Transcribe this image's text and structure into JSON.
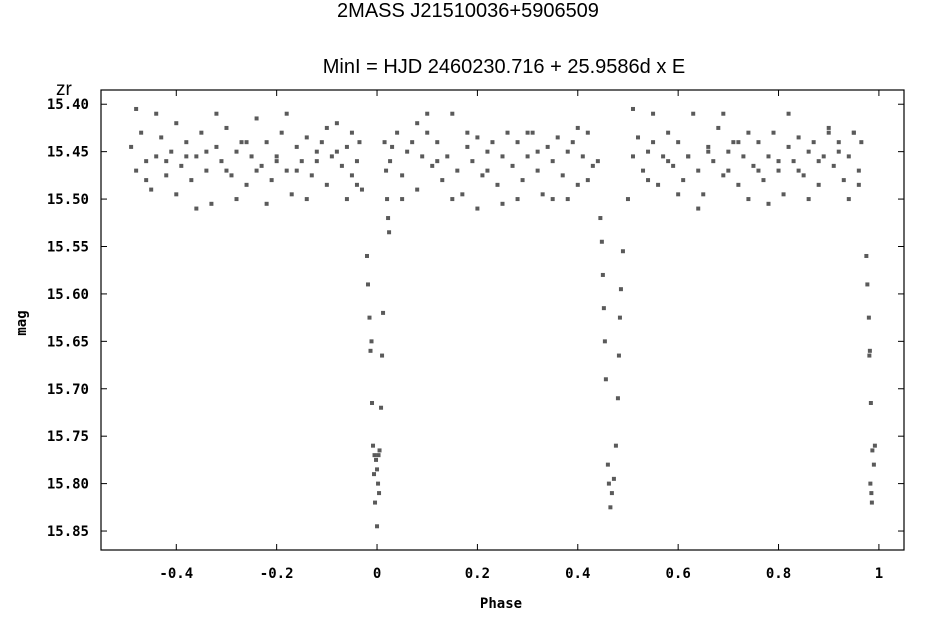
{
  "chart_data": {
    "type": "scatter",
    "title": "2MASS J21510036+5906509",
    "subtitle": "MinI = HJD 2460230.716 + 25.9586d x E",
    "band": "zr",
    "xlabel": "Phase",
    "ylabel": "mag",
    "xlim": [
      -0.55,
      1.05
    ],
    "ylim": [
      15.87,
      15.385
    ],
    "y_inverted": true,
    "grid": false,
    "x_ticks": [
      -0.4,
      -0.2,
      0,
      0.2,
      0.4,
      0.6,
      0.8,
      1
    ],
    "x_tick_labels": [
      "-0.4",
      "-0.2",
      "0",
      "0.2",
      "0.4",
      "0.6",
      "0.8",
      "1"
    ],
    "y_ticks": [
      15.4,
      15.45,
      15.5,
      15.55,
      15.6,
      15.65,
      15.7,
      15.75,
      15.8,
      15.85
    ],
    "y_tick_labels": [
      "15.40",
      "15.45",
      "15.50",
      "15.55",
      "15.60",
      "15.65",
      "15.70",
      "15.75",
      "15.80",
      "15.85"
    ],
    "marker_color": "#5a5a5a",
    "series": [
      {
        "name": "",
        "points": [
          [
            -0.49,
            15.445
          ],
          [
            -0.48,
            15.47
          ],
          [
            -0.47,
            15.43
          ],
          [
            -0.46,
            15.46
          ],
          [
            -0.45,
            15.49
          ],
          [
            -0.44,
            15.455
          ],
          [
            -0.43,
            15.435
          ],
          [
            -0.42,
            15.475
          ],
          [
            -0.41,
            15.45
          ],
          [
            -0.4,
            15.42
          ],
          [
            -0.39,
            15.465
          ],
          [
            -0.38,
            15.44
          ],
          [
            -0.37,
            15.48
          ],
          [
            -0.36,
            15.455
          ],
          [
            -0.35,
            15.43
          ],
          [
            -0.34,
            15.47
          ],
          [
            -0.33,
            15.505
          ],
          [
            -0.32,
            15.445
          ],
          [
            -0.31,
            15.46
          ],
          [
            -0.3,
            15.425
          ],
          [
            -0.29,
            15.475
          ],
          [
            -0.28,
            15.45
          ],
          [
            -0.27,
            15.44
          ],
          [
            -0.26,
            15.485
          ],
          [
            -0.25,
            15.455
          ],
          [
            -0.24,
            15.415
          ],
          [
            -0.23,
            15.465
          ],
          [
            -0.22,
            15.44
          ],
          [
            -0.21,
            15.48
          ],
          [
            -0.2,
            15.455
          ],
          [
            -0.19,
            15.43
          ],
          [
            -0.18,
            15.47
          ],
          [
            -0.17,
            15.495
          ],
          [
            -0.16,
            15.445
          ],
          [
            -0.15,
            15.46
          ],
          [
            -0.14,
            15.435
          ],
          [
            -0.13,
            15.475
          ],
          [
            -0.12,
            15.45
          ],
          [
            -0.11,
            15.44
          ],
          [
            -0.1,
            15.485
          ],
          [
            -0.09,
            15.455
          ],
          [
            -0.08,
            15.42
          ],
          [
            -0.07,
            15.465
          ],
          [
            -0.06,
            15.445
          ],
          [
            -0.05,
            15.475
          ],
          [
            -0.04,
            15.46
          ],
          [
            -0.035,
            15.44
          ],
          [
            -0.03,
            15.49
          ],
          [
            -0.48,
            15.405
          ],
          [
            -0.44,
            15.41
          ],
          [
            -0.4,
            15.495
          ],
          [
            -0.36,
            15.51
          ],
          [
            -0.32,
            15.41
          ],
          [
            -0.28,
            15.5
          ],
          [
            -0.22,
            15.505
          ],
          [
            -0.18,
            15.41
          ],
          [
            -0.14,
            15.5
          ],
          [
            -0.1,
            15.425
          ],
          [
            -0.06,
            15.5
          ],
          [
            -0.42,
            15.46
          ],
          [
            -0.38,
            15.455
          ],
          [
            -0.34,
            15.45
          ],
          [
            -0.26,
            15.44
          ],
          [
            -0.16,
            15.47
          ],
          [
            -0.12,
            15.46
          ],
          [
            -0.08,
            15.45
          ],
          [
            -0.46,
            15.48
          ],
          [
            -0.3,
            15.47
          ],
          [
            -0.2,
            15.46
          ],
          [
            -0.24,
            15.47
          ],
          [
            -0.05,
            15.43
          ],
          [
            -0.04,
            15.485
          ],
          [
            0.015,
            15.44
          ],
          [
            0.018,
            15.47
          ],
          [
            0.02,
            15.5
          ],
          [
            0.022,
            15.52
          ],
          [
            0.024,
            15.535
          ],
          [
            0.026,
            15.46
          ],
          [
            0.03,
            15.445
          ],
          [
            0.04,
            15.43
          ],
          [
            0.05,
            15.475
          ],
          [
            0.06,
            15.45
          ],
          [
            0.07,
            15.44
          ],
          [
            0.08,
            15.49
          ],
          [
            0.09,
            15.455
          ],
          [
            0.1,
            15.43
          ],
          [
            0.11,
            15.465
          ],
          [
            0.12,
            15.44
          ],
          [
            0.13,
            15.48
          ],
          [
            0.14,
            15.455
          ],
          [
            0.15,
            15.41
          ],
          [
            0.16,
            15.47
          ],
          [
            0.17,
            15.495
          ],
          [
            0.18,
            15.445
          ],
          [
            0.19,
            15.46
          ],
          [
            0.2,
            15.435
          ],
          [
            0.21,
            15.475
          ],
          [
            0.22,
            15.45
          ],
          [
            0.23,
            15.44
          ],
          [
            0.24,
            15.485
          ],
          [
            0.25,
            15.455
          ],
          [
            0.26,
            15.43
          ],
          [
            0.27,
            15.465
          ],
          [
            0.28,
            15.44
          ],
          [
            0.29,
            15.48
          ],
          [
            0.3,
            15.455
          ],
          [
            0.31,
            15.43
          ],
          [
            0.32,
            15.47
          ],
          [
            0.33,
            15.495
          ],
          [
            0.34,
            15.445
          ],
          [
            0.35,
            15.46
          ],
          [
            0.36,
            15.435
          ],
          [
            0.37,
            15.475
          ],
          [
            0.38,
            15.45
          ],
          [
            0.39,
            15.44
          ],
          [
            0.4,
            15.485
          ],
          [
            0.41,
            15.455
          ],
          [
            0.42,
            15.43
          ],
          [
            0.43,
            15.465
          ],
          [
            0.44,
            15.46
          ],
          [
            0.05,
            15.5
          ],
          [
            0.1,
            15.41
          ],
          [
            0.15,
            15.5
          ],
          [
            0.2,
            15.51
          ],
          [
            0.25,
            15.505
          ],
          [
            0.3,
            15.43
          ],
          [
            0.35,
            15.5
          ],
          [
            0.4,
            15.425
          ],
          [
            0.08,
            15.42
          ],
          [
            0.18,
            15.43
          ],
          [
            0.28,
            15.5
          ],
          [
            0.38,
            15.5
          ],
          [
            0.12,
            15.46
          ],
          [
            0.22,
            15.47
          ],
          [
            0.32,
            15.45
          ],
          [
            0.42,
            15.48
          ],
          [
            0.445,
            15.52
          ],
          [
            0.448,
            15.545
          ],
          [
            0.45,
            15.58
          ],
          [
            0.452,
            15.615
          ],
          [
            0.454,
            15.65
          ],
          [
            0.456,
            15.69
          ],
          [
            0.46,
            15.78
          ],
          [
            0.462,
            15.8
          ],
          [
            0.465,
            15.825
          ],
          [
            0.468,
            15.81
          ],
          [
            0.472,
            15.795
          ],
          [
            0.476,
            15.76
          ],
          [
            0.48,
            15.71
          ],
          [
            0.482,
            15.665
          ],
          [
            0.484,
            15.625
          ],
          [
            0.486,
            15.595
          ],
          [
            0.49,
            15.555
          ],
          [
            0.5,
            15.5
          ],
          [
            0.51,
            15.455
          ],
          [
            0.52,
            15.435
          ],
          [
            0.53,
            15.47
          ],
          [
            0.54,
            15.45
          ],
          [
            0.55,
            15.44
          ],
          [
            0.56,
            15.485
          ],
          [
            0.57,
            15.455
          ],
          [
            0.58,
            15.43
          ],
          [
            0.59,
            15.465
          ],
          [
            0.6,
            15.44
          ],
          [
            0.61,
            15.48
          ],
          [
            0.62,
            15.455
          ],
          [
            0.63,
            15.41
          ],
          [
            0.64,
            15.47
          ],
          [
            0.65,
            15.495
          ],
          [
            0.66,
            15.445
          ],
          [
            0.67,
            15.46
          ],
          [
            0.68,
            15.425
          ],
          [
            0.69,
            15.475
          ],
          [
            0.7,
            15.45
          ],
          [
            0.71,
            15.44
          ],
          [
            0.72,
            15.485
          ],
          [
            0.73,
            15.455
          ],
          [
            0.74,
            15.43
          ],
          [
            0.75,
            15.465
          ],
          [
            0.76,
            15.44
          ],
          [
            0.77,
            15.48
          ],
          [
            0.78,
            15.455
          ],
          [
            0.79,
            15.43
          ],
          [
            0.8,
            15.47
          ],
          [
            0.81,
            15.495
          ],
          [
            0.82,
            15.445
          ],
          [
            0.83,
            15.46
          ],
          [
            0.84,
            15.435
          ],
          [
            0.85,
            15.475
          ],
          [
            0.86,
            15.45
          ],
          [
            0.87,
            15.44
          ],
          [
            0.88,
            15.485
          ],
          [
            0.89,
            15.455
          ],
          [
            0.9,
            15.43
          ],
          [
            0.91,
            15.465
          ],
          [
            0.92,
            15.44
          ],
          [
            0.93,
            15.48
          ],
          [
            0.94,
            15.455
          ],
          [
            0.95,
            15.43
          ],
          [
            0.96,
            15.47
          ],
          [
            0.965,
            15.44
          ],
          [
            0.51,
            15.405
          ],
          [
            0.55,
            15.41
          ],
          [
            0.6,
            15.495
          ],
          [
            0.64,
            15.51
          ],
          [
            0.69,
            15.41
          ],
          [
            0.74,
            15.5
          ],
          [
            0.78,
            15.505
          ],
          [
            0.82,
            15.41
          ],
          [
            0.86,
            15.5
          ],
          [
            0.9,
            15.425
          ],
          [
            0.94,
            15.5
          ],
          [
            0.58,
            15.46
          ],
          [
            0.62,
            15.455
          ],
          [
            0.66,
            15.45
          ],
          [
            0.72,
            15.44
          ],
          [
            0.84,
            15.47
          ],
          [
            0.88,
            15.46
          ],
          [
            0.92,
            15.45
          ],
          [
            0.54,
            15.48
          ],
          [
            0.7,
            15.47
          ],
          [
            0.8,
            15.46
          ],
          [
            0.76,
            15.47
          ],
          [
            0.95,
            15.43
          ],
          [
            0.96,
            15.485
          ],
          [
            -0.02,
            15.56
          ],
          [
            -0.018,
            15.59
          ],
          [
            -0.015,
            15.625
          ],
          [
            -0.013,
            15.66
          ],
          [
            -0.01,
            15.715
          ],
          [
            -0.008,
            15.76
          ],
          [
            -0.005,
            15.77
          ],
          [
            -0.002,
            15.775
          ],
          [
            0,
            15.785
          ],
          [
            0.002,
            15.8
          ],
          [
            0.004,
            15.81
          ],
          [
            -0.004,
            15.82
          ],
          [
            0,
            15.845
          ],
          [
            0.005,
            15.765
          ],
          [
            0.008,
            15.72
          ],
          [
            0.01,
            15.665
          ],
          [
            0.012,
            15.62
          ],
          [
            -0.006,
            15.79
          ],
          [
            0.003,
            15.77
          ],
          [
            -0.011,
            15.65
          ],
          [
            0.975,
            15.56
          ],
          [
            0.977,
            15.59
          ],
          [
            0.98,
            15.625
          ],
          [
            0.982,
            15.66
          ],
          [
            0.984,
            15.715
          ],
          [
            0.987,
            15.765
          ],
          [
            0.99,
            15.78
          ],
          [
            0.985,
            15.81
          ],
          [
            0.992,
            15.76
          ],
          [
            0.983,
            15.8
          ],
          [
            0.986,
            15.82
          ],
          [
            0.981,
            15.665
          ]
        ]
      }
    ]
  }
}
